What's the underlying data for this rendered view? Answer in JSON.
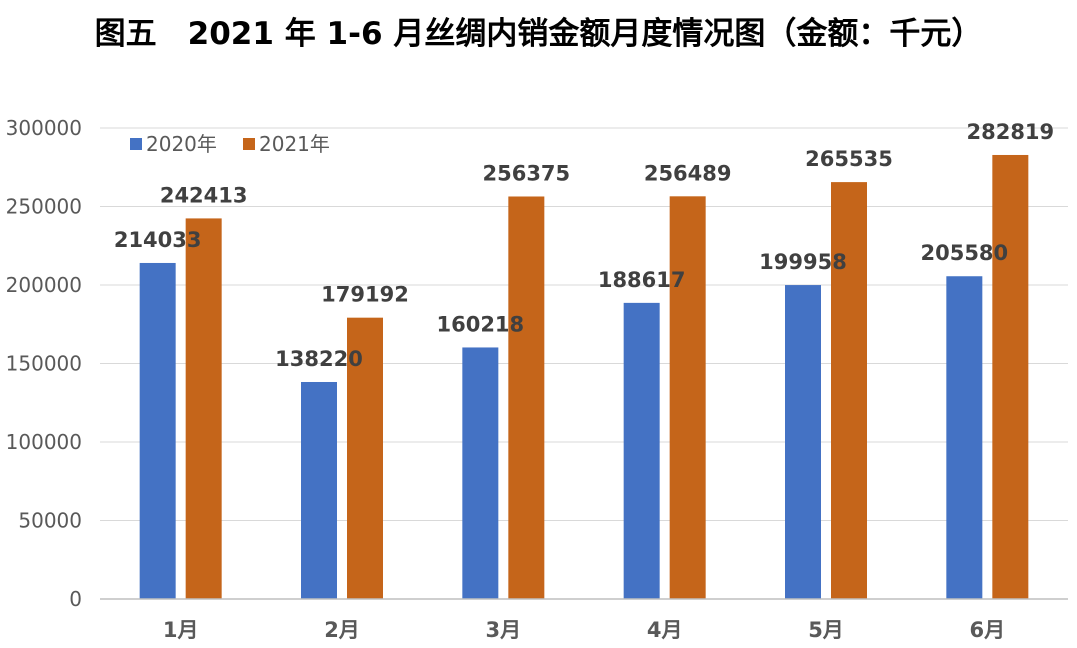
{
  "chart_data": {
    "type": "bar",
    "title": "图五　2021 年 1-6 月丝绸内销金额月度情况图（金额：千元）",
    "xlabel": "",
    "ylabel": "",
    "categories": [
      "1月",
      "2月",
      "3月",
      "4月",
      "5月",
      "6月"
    ],
    "series": [
      {
        "name": "2020年",
        "color": "#4472c4",
        "values": [
          214033,
          138220,
          160218,
          188617,
          199958,
          205580
        ]
      },
      {
        "name": "2021年",
        "color": "#c5651a",
        "values": [
          242413,
          179192,
          256375,
          256489,
          265535,
          282819
        ]
      }
    ],
    "ylim": [
      0,
      300000
    ],
    "yticks": [
      0,
      50000,
      100000,
      150000,
      200000,
      250000,
      300000
    ],
    "grid": true,
    "gridColor": "#d9d9d9",
    "axisColor": "#bfbfbf",
    "legend": "top-left",
    "data_labels": true
  }
}
